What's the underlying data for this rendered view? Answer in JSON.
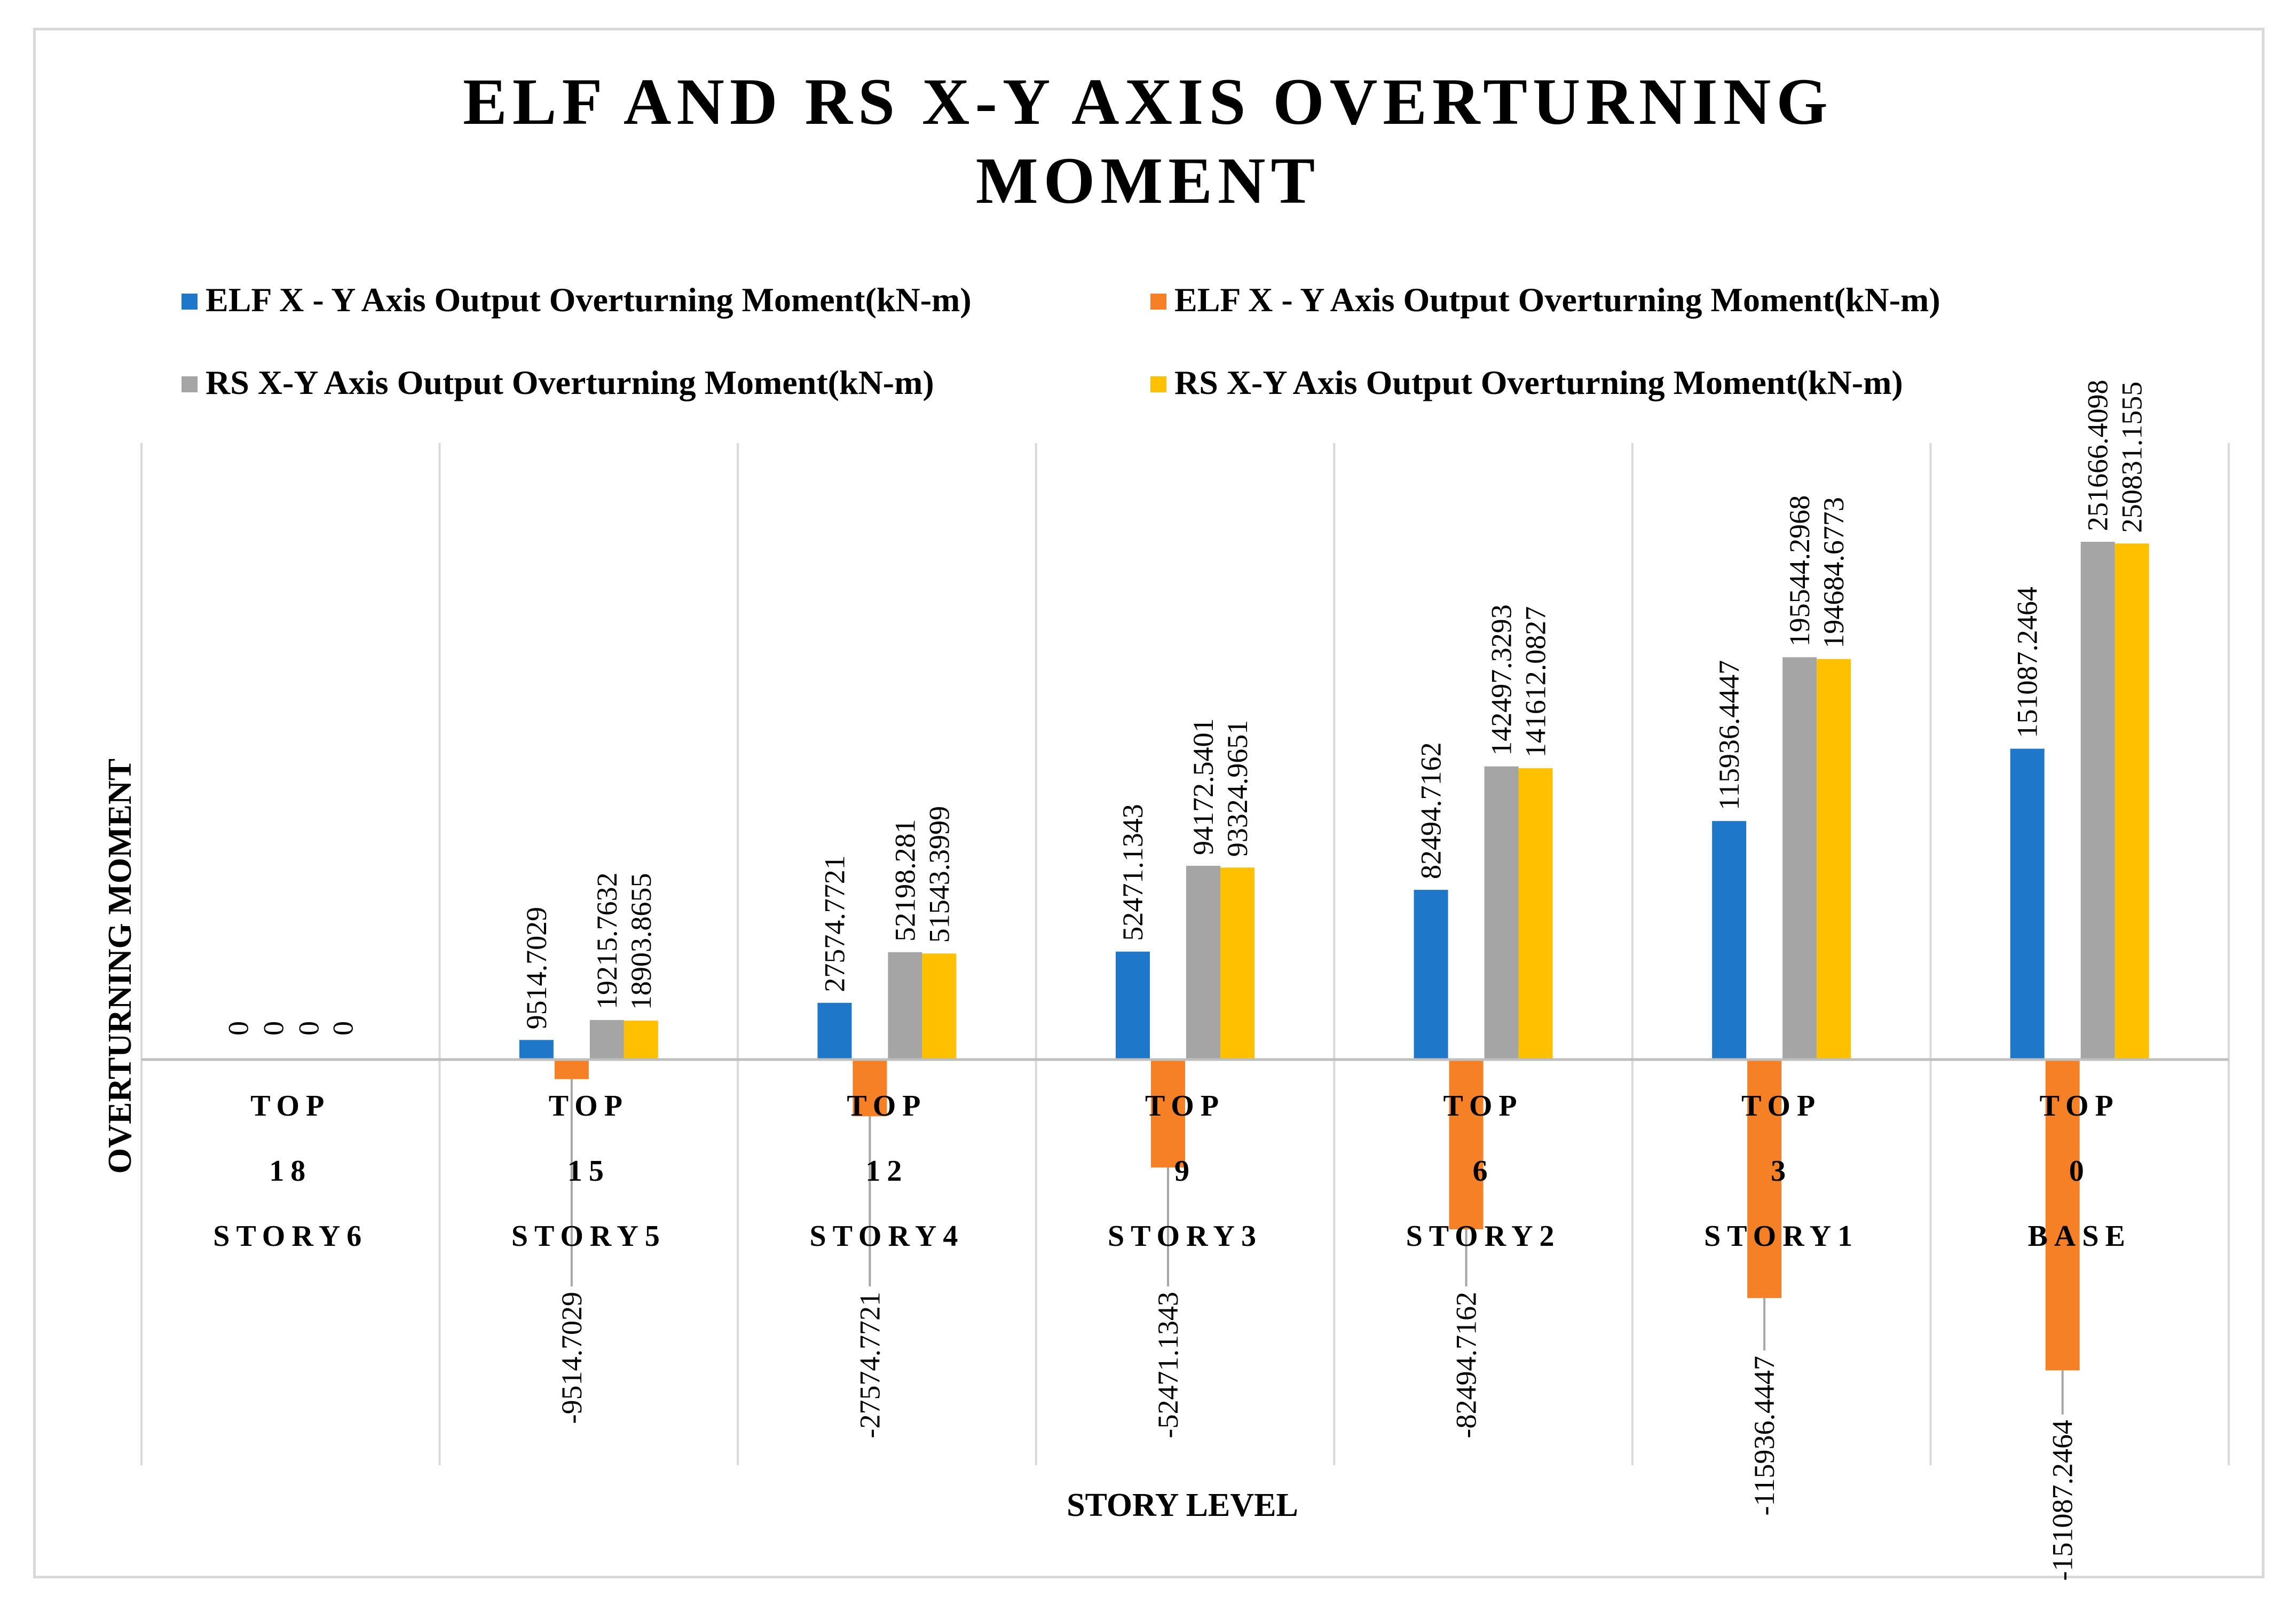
{
  "chart_data": {
    "type": "bar",
    "title_line1": "ELF AND RS X-Y AXIS OVERTURNING",
    "title_line2": "MOMENT",
    "xlabel": "STORY LEVEL",
    "ylabel": "OVERTURNING MOMENT",
    "categories": [
      {
        "line1": "TOP",
        "line2": "18",
        "line3": "STORY6"
      },
      {
        "line1": "TOP",
        "line2": "15",
        "line3": "STORY5"
      },
      {
        "line1": "TOP",
        "line2": "12",
        "line3": "STORY4"
      },
      {
        "line1": "TOP",
        "line2": "9",
        "line3": "STORY3"
      },
      {
        "line1": "TOP",
        "line2": "6",
        "line3": "STORY2"
      },
      {
        "line1": "TOP",
        "line2": "3",
        "line3": "STORY1"
      },
      {
        "line1": "TOP",
        "line2": "0",
        "line3": "BASE"
      }
    ],
    "series": [
      {
        "name": "ELF X - Y Axis Output Overturning Moment(kN-m)",
        "color": "#1f77c9",
        "values": [
          0,
          9514.7029,
          27574.7721,
          52471.1343,
          82494.7162,
          115936.4447,
          151087.2464
        ],
        "labels": [
          "0",
          "9514.7029",
          "27574.7721",
          "52471.1343",
          "82494.7162",
          "115936.4447",
          "151087.2464"
        ]
      },
      {
        "name": "ELF X - Y Axis Output Overturning Moment(kN-m)",
        "color": "#f58025",
        "values": [
          0,
          -9514.7029,
          -27574.7721,
          -52471.1343,
          -82494.7162,
          -115936.4447,
          -151087.2464
        ],
        "labels": [
          "0",
          "-9514.7029",
          "-27574.7721",
          "-52471.1343",
          "-82494.7162",
          "-115936.4447",
          "-151087.2464"
        ]
      },
      {
        "name": "RS X-Y Axis Output Overturning Moment(kN-m)",
        "color": "#a5a5a5",
        "values": [
          0,
          19215.7632,
          52198.281,
          94172.5401,
          142497.3293,
          195544.2968,
          251666.4098
        ],
        "labels": [
          "0",
          "19215.7632",
          "52198.281",
          "94172.5401",
          "142497.3293",
          "195544.2968",
          "251666.4098"
        ]
      },
      {
        "name": "RS X-Y Axis Output Overturning Moment(kN-m)",
        "color": "#ffc000",
        "values": [
          0,
          18903.8655,
          51543.3999,
          93324.9651,
          141612.0827,
          194684.6773,
          250831.1555
        ],
        "labels": [
          "0",
          "18903.8655",
          "51543.3999",
          "93324.9651",
          "141612.0827",
          "194684.6773",
          "250831.1555"
        ]
      }
    ],
    "legend_position": "top",
    "grid": "vertical category separators"
  }
}
